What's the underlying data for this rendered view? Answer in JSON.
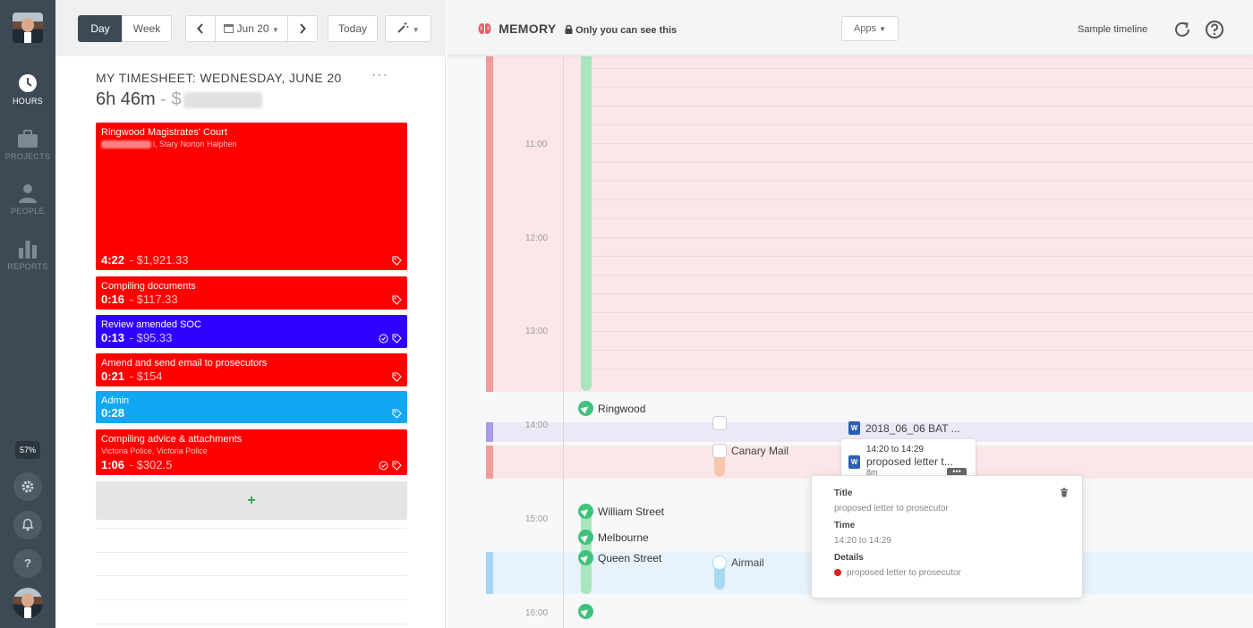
{
  "rail": {
    "items": [
      {
        "label": "HOURS",
        "icon": "clock-icon",
        "active": true
      },
      {
        "label": "PROJECTS",
        "icon": "briefcase-icon",
        "active": false
      },
      {
        "label": "PEOPLE",
        "icon": "person-icon",
        "active": false
      },
      {
        "label": "REPORTS",
        "icon": "bar-chart-icon",
        "active": false
      }
    ],
    "progress_percent_label": "57%",
    "help_label": "?"
  },
  "toolbar": {
    "day_label": "Day",
    "week_label": "Week",
    "date_label": "Jun 20",
    "today_label": "Today"
  },
  "timesheet": {
    "title": "MY TIMESHEET: WEDNESDAY, JUNE 20",
    "more_label": "···",
    "total_time": "6h 46m",
    "total_amount_prefix": "- $",
    "entries": [
      {
        "title": "Ringwood Magistrates' Court",
        "subtitle": "l, Stary Norton Halphen",
        "duration": "4:22",
        "amount": "- $1,921.33",
        "color": "#ff0000"
      },
      {
        "title": "Compiling documents",
        "subtitle": "",
        "duration": "0:16",
        "amount": "- $117.33",
        "color": "#ff0000"
      },
      {
        "title": "Review amended SOC",
        "subtitle": "",
        "duration": "0:13",
        "amount": "- $95.33",
        "color": "#2f00ff"
      },
      {
        "title": "Amend and send email to prosecutors",
        "subtitle": "",
        "duration": "0:21",
        "amount": "- $154",
        "color": "#ff0000"
      },
      {
        "title": "Admin",
        "subtitle": "",
        "duration": "0:28",
        "amount": "",
        "color": "#11a7f2"
      },
      {
        "title": "Compiling advice & attachments",
        "subtitle": "Victoria Police, Victoria Police",
        "duration": "1:06",
        "amount": "- $302.5",
        "color": "#ff0000"
      }
    ],
    "add_label": "+"
  },
  "memory": {
    "logo": "MEMORY",
    "privacy": "Only you can see this",
    "apps_label": "Apps",
    "sample_label": "Sample timeline",
    "hours": [
      "11:00",
      "12:00",
      "13:00",
      "14:00",
      "15:00",
      "16:00"
    ],
    "locations": [
      "Ringwood",
      "William Street",
      "Melbourne",
      "Queen Street"
    ],
    "apps": [
      "Canary Mail",
      "Airmail"
    ],
    "docs": [
      "2018_06_06 BAT ..."
    ],
    "mini_card": {
      "time": "14:20 to 14:29",
      "title": "proposed letter t...",
      "duration": "8m"
    },
    "popover": {
      "title_label": "Title",
      "title_value": "proposed letter to prosecutor",
      "time_label": "Time",
      "time_value": "14:20 to 14:29",
      "details_label": "Details",
      "details_value": "proposed letter to prosecutor"
    }
  },
  "colors": {
    "rail_bg": "#3d4a55",
    "location_green": "#3ec27a",
    "memory_pink_band": "#fbe7e7",
    "memory_purple_band": "#ece9f6",
    "memory_blue_band": "#e7f2fb"
  }
}
